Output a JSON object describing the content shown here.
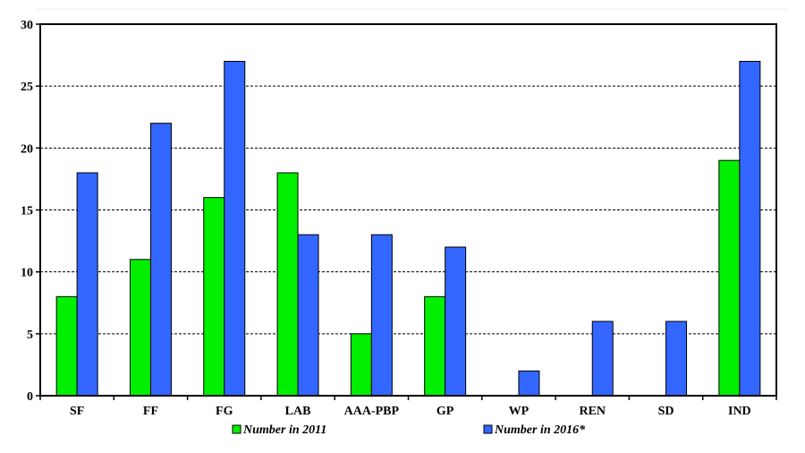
{
  "chart_data": {
    "type": "bar",
    "categories": [
      "SF",
      "FF",
      "FG",
      "LAB",
      "AAA-PBP",
      "GP",
      "WP",
      "REN",
      "SD",
      "IND"
    ],
    "series": [
      {
        "name": "Number in 2011",
        "color": "#00ee00",
        "values": [
          8,
          11,
          16,
          18,
          5,
          8,
          0,
          0,
          0,
          19
        ]
      },
      {
        "name": "Number in 2016*",
        "color": "#3366ff",
        "values": [
          18,
          22,
          27,
          13,
          13,
          12,
          2,
          6,
          6,
          27
        ]
      }
    ],
    "title": "",
    "xlabel": "",
    "ylabel": "",
    "ylim": [
      0,
      30
    ],
    "yticks": [
      0,
      5,
      10,
      15,
      20,
      25,
      30
    ],
    "grid": "horizontal-dashed",
    "legend": "bottom"
  }
}
